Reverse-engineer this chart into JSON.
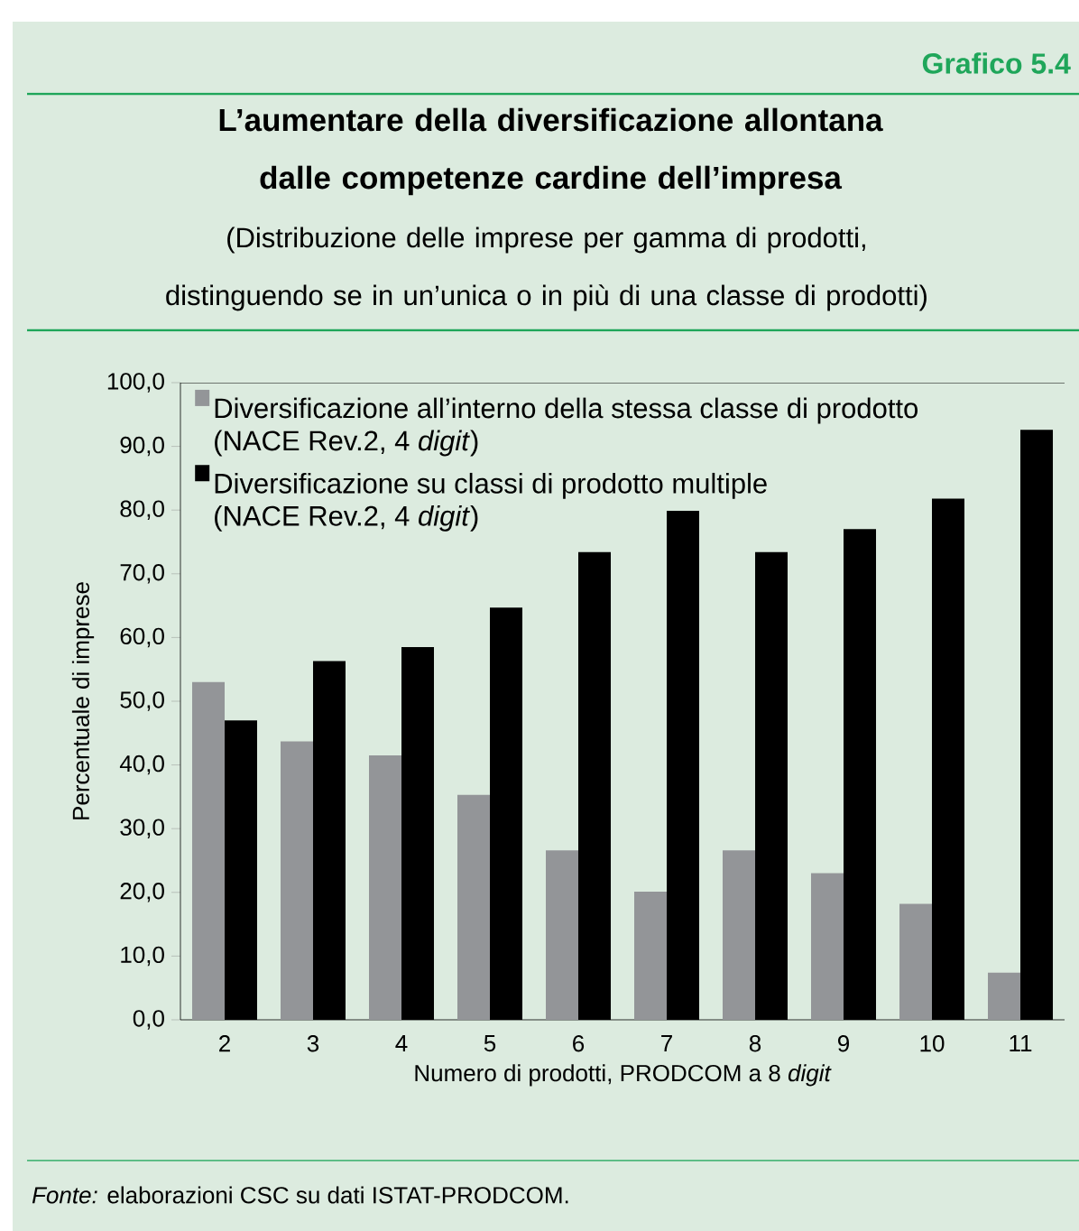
{
  "chart_data": {
    "type": "bar",
    "title": "L’aumentare della diversificazione allontana dalle competenze cardine dell’impresa",
    "subtitle": "(Distribuzione delle imprese per gamma di prodotti, distinguendo se in un’unica o in più di una classe di prodotti)",
    "annotations": [
      "Grafico 5.4",
      "*Fonte:* elaborazioni CSC su dati ISTAT-PRODCOM."
    ],
    "xlabel": "Numero di prodotti, PRODCOM a 8 *digit*",
    "ylabel": "Percentuale  di  imprese",
    "categories": [
      "2",
      "3",
      "4",
      "5",
      "6",
      "7",
      "8",
      "9",
      "10",
      "11"
    ],
    "series": [
      {
        "name": "Diversificazione all’interno della stessa classe di prodotto (NACE Rev.2, 4 *digit*)",
        "color": "#939598",
        "values": [
          53.0,
          43.7,
          41.5,
          35.3,
          26.6,
          20.1,
          26.6,
          23.0,
          18.2,
          7.4
        ]
      },
      {
        "name": "Diversificazione su classi di prodotto multiple (NACE Rev.2, 4 *digit*)",
        "color": "#000000",
        "values": [
          47.0,
          56.3,
          58.5,
          64.7,
          73.4,
          79.9,
          73.4,
          77.0,
          81.8,
          92.6
        ]
      }
    ],
    "ylim": [
      0,
      100
    ],
    "yticks": [
      {
        "value": 0,
        "label": "0,0"
      },
      {
        "value": 10,
        "label": "10,0"
      },
      {
        "value": 20,
        "label": "20,0"
      },
      {
        "value": 30,
        "label": "30,0"
      },
      {
        "value": 40,
        "label": "40,0"
      },
      {
        "value": 50,
        "label": "50,0"
      },
      {
        "value": 60,
        "label": "60,0"
      },
      {
        "value": 70,
        "label": "70,0"
      },
      {
        "value": 80,
        "label": "80,0"
      },
      {
        "value": 90,
        "label": "90,0"
      },
      {
        "value": 100,
        "label": "100,0"
      }
    ],
    "legend": "top left",
    "grid": false
  }
}
